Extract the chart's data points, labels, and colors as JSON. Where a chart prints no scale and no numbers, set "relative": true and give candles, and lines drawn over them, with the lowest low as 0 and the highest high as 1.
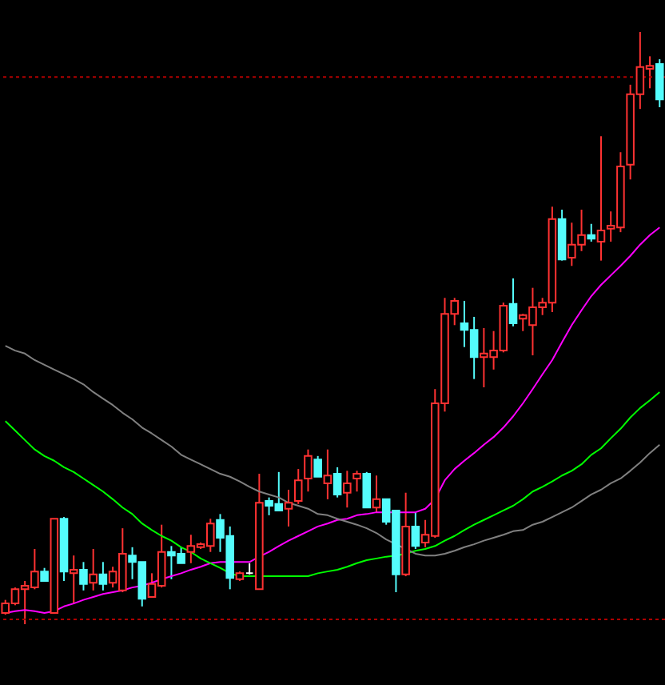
{
  "chart_data": {
    "type": "candlestick",
    "relative": true,
    "categories": [
      null,
      null,
      null,
      null,
      null,
      null,
      null,
      null,
      null,
      null,
      null,
      null,
      null,
      null,
      null,
      null,
      null,
      null,
      null,
      null,
      null,
      null,
      null,
      null,
      null,
      null,
      null,
      null,
      null,
      null,
      null,
      null,
      null,
      null,
      null,
      null,
      null,
      null,
      null,
      null,
      null,
      null,
      null,
      null,
      null,
      null,
      null,
      null,
      null,
      null,
      null,
      null,
      null,
      null,
      null,
      null,
      null,
      null,
      null,
      null,
      null,
      null,
      null,
      null,
      null,
      null,
      null,
      null
    ],
    "ohlc": [
      [
        0.019,
        0.041,
        0.016,
        0.035
      ],
      [
        0.035,
        0.062,
        0.032,
        0.059
      ],
      [
        0.059,
        0.073,
        0,
        0.065
      ],
      [
        0.062,
        0.127,
        0.059,
        0.089
      ],
      [
        0.089,
        0.095,
        0.073,
        0.073
      ],
      [
        0.019,
        0.178,
        0.019,
        0.178
      ],
      [
        0.178,
        0.181,
        0.073,
        0.089
      ],
      [
        0.086,
        0.116,
        0.035,
        0.092
      ],
      [
        0.092,
        0.105,
        0.057,
        0.068
      ],
      [
        0.07,
        0.127,
        0.057,
        0.084
      ],
      [
        0.084,
        0.105,
        0.057,
        0.068
      ],
      [
        0.07,
        0.097,
        0.062,
        0.089
      ],
      [
        0.057,
        0.162,
        0.054,
        0.119
      ],
      [
        0.116,
        0.13,
        0.076,
        0.105
      ],
      [
        0.105,
        0.105,
        0.03,
        0.043
      ],
      [
        0.046,
        0.086,
        0.046,
        0.068
      ],
      [
        0.065,
        0.168,
        0.062,
        0.122
      ],
      [
        0.122,
        0.132,
        0.076,
        0.116
      ],
      [
        0.119,
        0.13,
        0.103,
        0.103
      ],
      [
        0.122,
        0.151,
        0.103,
        0.132
      ],
      [
        0.13,
        0.138,
        0.127,
        0.135
      ],
      [
        0.132,
        0.178,
        0.122,
        0.17
      ],
      [
        0.176,
        0.186,
        0.122,
        0.146
      ],
      [
        0.149,
        0.165,
        0.059,
        0.078
      ],
      [
        0.076,
        0.089,
        0.073,
        0.086
      ],
      [
        0.086,
        0.103,
        0.084,
        0.086
      ],
      [
        0.059,
        0.254,
        0.059,
        0.205
      ],
      [
        0.208,
        0.214,
        0.184,
        0.2
      ],
      [
        0.203,
        0.257,
        0.192,
        0.192
      ],
      [
        0.195,
        0.227,
        0.165,
        0.205
      ],
      [
        0.208,
        0.262,
        0.203,
        0.243
      ],
      [
        0.246,
        0.295,
        0.224,
        0.284
      ],
      [
        0.278,
        0.284,
        0.249,
        0.249
      ],
      [
        0.238,
        0.295,
        0.211,
        0.251
      ],
      [
        0.254,
        0.265,
        0.214,
        0.219
      ],
      [
        0.222,
        0.259,
        0.197,
        0.238
      ],
      [
        0.246,
        0.259,
        0.224,
        0.254
      ],
      [
        0.254,
        0.257,
        0.197,
        0.197
      ],
      [
        0.197,
        0.251,
        0.189,
        0.211
      ],
      [
        0.211,
        0.211,
        0.168,
        0.173
      ],
      [
        0.192,
        0.192,
        0.054,
        0.084
      ],
      [
        0.084,
        0.222,
        0.081,
        0.165
      ],
      [
        0.165,
        0.189,
        0.127,
        0.132
      ],
      [
        0.138,
        0.176,
        0.13,
        0.151
      ],
      [
        0.149,
        0.397,
        0.146,
        0.373
      ],
      [
        0.373,
        0.551,
        0.359,
        0.524
      ],
      [
        0.524,
        0.551,
        0.505,
        0.546
      ],
      [
        0.508,
        0.546,
        0.468,
        0.497
      ],
      [
        0.497,
        0.519,
        0.414,
        0.451
      ],
      [
        0.451,
        0.5,
        0.4,
        0.457
      ],
      [
        0.451,
        0.495,
        0.43,
        0.462
      ],
      [
        0.462,
        0.543,
        0.459,
        0.538
      ],
      [
        0.541,
        0.584,
        0.503,
        0.508
      ],
      [
        0.516,
        0.524,
        0.495,
        0.522
      ],
      [
        0.505,
        0.568,
        0.454,
        0.535
      ],
      [
        0.535,
        0.551,
        0.522,
        0.543
      ],
      [
        0.543,
        0.705,
        0.527,
        0.684
      ],
      [
        0.684,
        0.7,
        0.614,
        0.616
      ],
      [
        0.619,
        0.678,
        0.605,
        0.641
      ],
      [
        0.641,
        0.7,
        0.63,
        0.657
      ],
      [
        0.657,
        0.676,
        0.646,
        0.651
      ],
      [
        0.646,
        0.824,
        0.614,
        0.665
      ],
      [
        0.668,
        0.697,
        0.646,
        0.673
      ],
      [
        0.67,
        0.797,
        0.662,
        0.773
      ],
      [
        0.776,
        0.911,
        0.751,
        0.895
      ],
      [
        0.895,
        1,
        0.87,
        0.941
      ],
      [
        0.938,
        0.959,
        0.905,
        0.943
      ],
      [
        0.946,
        0.954,
        0.873,
        0.886
      ]
    ],
    "colors": [
      "#ff3232",
      "#ff3232",
      "#ff3232",
      "#ff3232",
      "#54fcfc",
      "#ff3232",
      "#54fcfc",
      "#ff3232",
      "#54fcfc",
      "#ff3232",
      "#54fcfc",
      "#ff3232",
      "#ff3232",
      "#54fcfc",
      "#54fcfc",
      "#ff3232",
      "#ff3232",
      "#54fcfc",
      "#54fcfc",
      "#ff3232",
      "#ff3232",
      "#ff3232",
      "#54fcfc",
      "#54fcfc",
      "#ff3232",
      "#ffffff",
      "#ff3232",
      "#54fcfc",
      "#54fcfc",
      "#ff3232",
      "#ff3232",
      "#ff3232",
      "#54fcfc",
      "#ff3232",
      "#54fcfc",
      "#ff3232",
      "#ff3232",
      "#54fcfc",
      "#ff3232",
      "#54fcfc",
      "#54fcfc",
      "#ff3232",
      "#54fcfc",
      "#ff3232",
      "#ff3232",
      "#ff3232",
      "#ff3232",
      "#54fcfc",
      "#54fcfc",
      "#ff3232",
      "#ff3232",
      "#ff3232",
      "#54fcfc",
      "#ff3232",
      "#ff3232",
      "#ff3232",
      "#ff3232",
      "#54fcfc",
      "#ff3232",
      "#ff3232",
      "#54fcfc",
      "#ff3232",
      "#ff3232",
      "#ff3232",
      "#ff3232",
      "#ff3232",
      "#ff3232",
      "#54fcfc"
    ],
    "series": [
      {
        "type": "line",
        "color": "#ff00ff",
        "values": [
          0.019,
          0.022,
          0.024,
          0.022,
          0.019,
          0.022,
          0.03,
          0.035,
          0.041,
          0.046,
          0.051,
          0.054,
          0.057,
          0.062,
          0.065,
          0.07,
          0.076,
          0.081,
          0.086,
          0.092,
          0.097,
          0.103,
          0.105,
          0.105,
          0.105,
          0.105,
          0.114,
          0.122,
          0.132,
          0.141,
          0.149,
          0.157,
          0.165,
          0.17,
          0.176,
          0.178,
          0.184,
          0.186,
          0.189,
          0.189,
          0.189,
          0.189,
          0.189,
          0.195,
          0.211,
          0.243,
          0.262,
          0.276,
          0.289,
          0.303,
          0.316,
          0.332,
          0.351,
          0.373,
          0.397,
          0.422,
          0.446,
          0.476,
          0.505,
          0.53,
          0.554,
          0.573,
          0.589,
          0.605,
          0.622,
          0.641,
          0.657,
          0.67
        ]
      },
      {
        "type": "line",
        "color": "#00ff00",
        "values": [
          0.343,
          0.327,
          0.311,
          0.295,
          0.284,
          0.276,
          0.265,
          0.257,
          0.246,
          0.235,
          0.224,
          0.211,
          0.197,
          0.186,
          0.17,
          0.159,
          0.149,
          0.141,
          0.13,
          0.122,
          0.111,
          0.103,
          0.095,
          0.086,
          0.081,
          0.081,
          0.081,
          0.081,
          0.081,
          0.081,
          0.081,
          0.081,
          0.086,
          0.089,
          0.092,
          0.097,
          0.103,
          0.108,
          0.111,
          0.114,
          0.116,
          0.119,
          0.124,
          0.127,
          0.132,
          0.141,
          0.149,
          0.159,
          0.168,
          0.176,
          0.184,
          0.192,
          0.2,
          0.211,
          0.224,
          0.232,
          0.241,
          0.251,
          0.259,
          0.27,
          0.286,
          0.297,
          0.314,
          0.33,
          0.349,
          0.365,
          0.378,
          0.392
        ]
      },
      {
        "type": "line",
        "color": "#808080",
        "values": [
          0.47,
          0.462,
          0.457,
          0.446,
          0.438,
          0.43,
          0.422,
          0.414,
          0.405,
          0.392,
          0.381,
          0.37,
          0.357,
          0.346,
          0.332,
          0.322,
          0.311,
          0.3,
          0.286,
          0.278,
          0.27,
          0.262,
          0.254,
          0.249,
          0.241,
          0.232,
          0.224,
          0.219,
          0.214,
          0.205,
          0.2,
          0.195,
          0.186,
          0.184,
          0.178,
          0.173,
          0.168,
          0.162,
          0.154,
          0.143,
          0.135,
          0.127,
          0.119,
          0.116,
          0.116,
          0.119,
          0.124,
          0.13,
          0.135,
          0.141,
          0.146,
          0.151,
          0.157,
          0.159,
          0.168,
          0.173,
          0.181,
          0.189,
          0.197,
          0.208,
          0.219,
          0.227,
          0.238,
          0.246,
          0.259,
          0.273,
          0.289,
          0.303
        ]
      }
    ],
    "ref_lines": [
      {
        "axis": "y",
        "value": 0.924,
        "color": "#b00000",
        "line_style": "dotted"
      },
      {
        "axis": "y",
        "value": 0.008,
        "color": "#b00000",
        "line_style": "dotted"
      }
    ]
  }
}
